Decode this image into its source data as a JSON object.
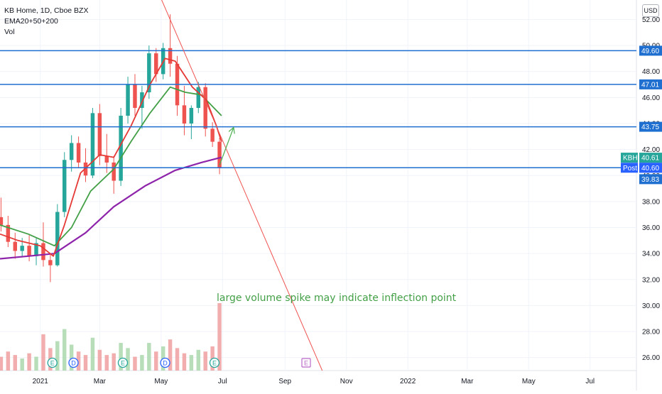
{
  "legend": {
    "symbol": "KB Home, 1D, Cboe BZX",
    "ema": "EMA20+50+200",
    "vol": "Vol"
  },
  "currency_button": "USD",
  "annotation": "large volume spike may indicate inflection point",
  "colors": {
    "candle_up": "#26a69a",
    "candle_down": "#ef5350",
    "hline": "#1e6fd0",
    "ema20": "#e53935",
    "ema50": "#43a047",
    "ema200": "#8e24aa",
    "trendline": "#ef5350",
    "arrow": "#4caf50",
    "annotation": "#43a047",
    "vol_up": "#a5d6a7",
    "vol_down": "#ef9a9a"
  },
  "chart_data": {
    "type": "candlestick",
    "title": "KB Home, 1D, Cboe BZX",
    "ylim": [
      25.0,
      53.5
    ],
    "y_ticks": [
      "26.00",
      "28.00",
      "30.00",
      "32.00",
      "34.00",
      "36.00",
      "38.00",
      "40.00",
      "42.00",
      "44.00",
      "46.00",
      "48.00",
      "50.00",
      "52.00"
    ],
    "x_ticks": [
      "2021",
      "Mar",
      "May",
      "Jul",
      "Sep",
      "Nov",
      "2022",
      "Mar",
      "May",
      "Jul"
    ],
    "x_tick_dates": [
      "2021-01-01",
      "2021-03-01",
      "2021-05-01",
      "2021-07-01",
      "2021-09-01",
      "2021-11-01",
      "2022-01-01",
      "2022-03-01",
      "2022-05-01",
      "2022-07-01"
    ],
    "x_range": [
      "2020-11-22",
      "2022-08-16"
    ],
    "horizontal_lines": [
      {
        "value": 49.6,
        "label": "49.60"
      },
      {
        "value": 47.01,
        "label": "47.01"
      },
      {
        "value": 43.75,
        "label": "43.75"
      },
      {
        "value": 40.6,
        "label": "40.60"
      }
    ],
    "price_badges": [
      {
        "name": "KBH",
        "value": 40.61,
        "label": "40.61"
      },
      {
        "name": "Post",
        "value": 40.6,
        "label": "40.60"
      },
      {
        "name": "",
        "value": 39.83,
        "label": "39.83"
      }
    ],
    "ohlc_weekly": [
      {
        "d": "2020-11-23",
        "o": 36.8,
        "h": 38.3,
        "l": 35.7,
        "c": 36.2
      },
      {
        "d": "2020-11-30",
        "o": 36.2,
        "h": 36.9,
        "l": 34.5,
        "c": 34.9
      },
      {
        "d": "2020-12-07",
        "o": 34.9,
        "h": 35.6,
        "l": 33.6,
        "c": 34.2
      },
      {
        "d": "2020-12-14",
        "o": 34.2,
        "h": 35.2,
        "l": 33.7,
        "c": 34.6
      },
      {
        "d": "2020-12-21",
        "o": 34.6,
        "h": 35.4,
        "l": 33.4,
        "c": 33.8
      },
      {
        "d": "2020-12-28",
        "o": 33.8,
        "h": 35.2,
        "l": 33.1,
        "c": 34.8
      },
      {
        "d": "2021-01-04",
        "o": 34.8,
        "h": 36.4,
        "l": 33.0,
        "c": 33.5
      },
      {
        "d": "2021-01-11",
        "o": 33.5,
        "h": 33.9,
        "l": 31.8,
        "c": 33.1
      },
      {
        "d": "2021-01-18",
        "o": 33.1,
        "h": 37.8,
        "l": 33.0,
        "c": 37.2
      },
      {
        "d": "2021-01-25",
        "o": 37.2,
        "h": 41.8,
        "l": 36.8,
        "c": 41.2
      },
      {
        "d": "2021-02-01",
        "o": 41.2,
        "h": 43.1,
        "l": 40.3,
        "c": 42.5
      },
      {
        "d": "2021-02-08",
        "o": 42.5,
        "h": 43.0,
        "l": 40.6,
        "c": 41.0
      },
      {
        "d": "2021-02-15",
        "o": 41.0,
        "h": 42.1,
        "l": 39.5,
        "c": 40.0
      },
      {
        "d": "2021-02-22",
        "o": 40.0,
        "h": 45.2,
        "l": 39.8,
        "c": 44.8
      },
      {
        "d": "2021-03-01",
        "o": 44.8,
        "h": 45.5,
        "l": 40.8,
        "c": 41.5
      },
      {
        "d": "2021-03-08",
        "o": 41.5,
        "h": 43.2,
        "l": 40.2,
        "c": 41.0
      },
      {
        "d": "2021-03-15",
        "o": 41.0,
        "h": 41.5,
        "l": 38.6,
        "c": 39.6
      },
      {
        "d": "2021-03-22",
        "o": 39.6,
        "h": 45.2,
        "l": 39.2,
        "c": 44.6
      },
      {
        "d": "2021-03-29",
        "o": 44.6,
        "h": 47.6,
        "l": 44.0,
        "c": 47.0
      },
      {
        "d": "2021-04-05",
        "o": 47.0,
        "h": 47.8,
        "l": 44.6,
        "c": 45.2
      },
      {
        "d": "2021-04-12",
        "o": 45.2,
        "h": 46.9,
        "l": 43.6,
        "c": 46.4
      },
      {
        "d": "2021-04-19",
        "o": 46.4,
        "h": 50.0,
        "l": 45.9,
        "c": 49.4
      },
      {
        "d": "2021-04-26",
        "o": 49.4,
        "h": 49.8,
        "l": 47.2,
        "c": 47.8
      },
      {
        "d": "2021-05-03",
        "o": 47.8,
        "h": 50.2,
        "l": 47.4,
        "c": 49.8
      },
      {
        "d": "2021-05-10",
        "o": 49.8,
        "h": 52.4,
        "l": 47.6,
        "c": 48.6
      },
      {
        "d": "2021-05-17",
        "o": 48.6,
        "h": 49.2,
        "l": 44.6,
        "c": 45.4
      },
      {
        "d": "2021-05-24",
        "o": 45.4,
        "h": 46.9,
        "l": 43.1,
        "c": 44.0
      },
      {
        "d": "2021-05-31",
        "o": 44.0,
        "h": 45.4,
        "l": 42.8,
        "c": 45.2
      },
      {
        "d": "2021-06-07",
        "o": 45.2,
        "h": 47.2,
        "l": 44.8,
        "c": 46.8
      },
      {
        "d": "2021-06-14",
        "o": 46.8,
        "h": 47.1,
        "l": 43.0,
        "c": 43.6
      },
      {
        "d": "2021-06-21",
        "o": 43.6,
        "h": 44.1,
        "l": 42.2,
        "c": 42.6
      },
      {
        "d": "2021-06-28",
        "o": 42.6,
        "h": 42.9,
        "l": 40.1,
        "c": 40.6
      }
    ],
    "ema20": [
      {
        "d": "2020-11-22",
        "v": 35.5
      },
      {
        "d": "2020-12-10",
        "v": 35.0
      },
      {
        "d": "2021-01-01",
        "v": 34.6
      },
      {
        "d": "2021-01-14",
        "v": 33.8
      },
      {
        "d": "2021-01-25",
        "v": 36.2
      },
      {
        "d": "2021-02-10",
        "v": 40.2
      },
      {
        "d": "2021-03-01",
        "v": 41.6
      },
      {
        "d": "2021-03-15",
        "v": 41.4
      },
      {
        "d": "2021-04-01",
        "v": 43.8
      },
      {
        "d": "2021-04-20",
        "v": 47.0
      },
      {
        "d": "2021-05-05",
        "v": 49.0
      },
      {
        "d": "2021-05-15",
        "v": 48.8
      },
      {
        "d": "2021-06-01",
        "v": 46.8
      },
      {
        "d": "2021-06-15",
        "v": 45.8
      },
      {
        "d": "2021-06-25",
        "v": 43.8
      },
      {
        "d": "2021-06-30",
        "v": 42.6
      }
    ],
    "ema50": [
      {
        "d": "2020-11-22",
        "v": 36.2
      },
      {
        "d": "2020-12-20",
        "v": 35.5
      },
      {
        "d": "2021-01-15",
        "v": 34.6
      },
      {
        "d": "2021-02-01",
        "v": 36.0
      },
      {
        "d": "2021-02-20",
        "v": 38.8
      },
      {
        "d": "2021-03-15",
        "v": 40.5
      },
      {
        "d": "2021-04-01",
        "v": 42.6
      },
      {
        "d": "2021-04-20",
        "v": 44.8
      },
      {
        "d": "2021-05-10",
        "v": 46.8
      },
      {
        "d": "2021-05-25",
        "v": 46.4
      },
      {
        "d": "2021-06-10",
        "v": 46.2
      },
      {
        "d": "2021-06-30",
        "v": 44.6
      }
    ],
    "ema200": [
      {
        "d": "2020-11-22",
        "v": 33.6
      },
      {
        "d": "2020-12-20",
        "v": 33.8
      },
      {
        "d": "2021-01-15",
        "v": 34.0
      },
      {
        "d": "2021-02-15",
        "v": 35.6
      },
      {
        "d": "2021-03-15",
        "v": 37.6
      },
      {
        "d": "2021-04-15",
        "v": 39.2
      },
      {
        "d": "2021-05-15",
        "v": 40.4
      },
      {
        "d": "2021-06-10",
        "v": 41.0
      },
      {
        "d": "2021-06-30",
        "v": 41.4
      }
    ],
    "trendline": {
      "start": {
        "d": "2021-05-01",
        "v": 53.6
      },
      "end": {
        "d": "2021-10-08",
        "v": 25.0
      }
    },
    "arrow": {
      "start": {
        "d": "2021-06-28",
        "v": 40.8
      },
      "end": {
        "d": "2021-07-12",
        "v": 43.7
      }
    },
    "volume_weekly": [
      0.8,
      1.1,
      0.9,
      0.7,
      1.0,
      0.8,
      2.1,
      1.3,
      1.7,
      2.4,
      1.5,
      1.1,
      0.9,
      1.9,
      1.2,
      0.9,
      1.0,
      1.6,
      1.3,
      0.8,
      0.9,
      1.6,
      1.1,
      1.4,
      1.8,
      1.3,
      1.0,
      0.9,
      1.2,
      1.1,
      1.4,
      3.9
    ],
    "event_markers": [
      {
        "d": "2021-01-13",
        "label": "E",
        "kind": "earnings"
      },
      {
        "d": "2021-02-03",
        "label": "D",
        "kind": "dividend"
      },
      {
        "d": "2021-03-24",
        "label": "E",
        "kind": "earnings"
      },
      {
        "d": "2021-05-05",
        "label": "D",
        "kind": "dividend"
      },
      {
        "d": "2021-06-23",
        "label": "E",
        "kind": "earnings"
      },
      {
        "d": "2021-09-22",
        "label": "E",
        "kind": "earnings-future"
      }
    ]
  }
}
